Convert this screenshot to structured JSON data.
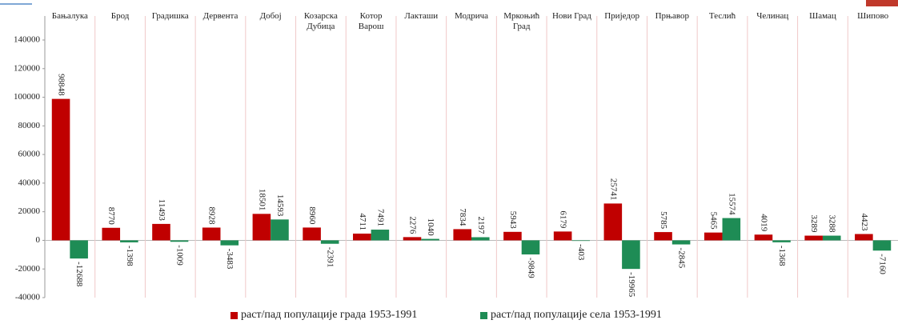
{
  "chart_data": {
    "type": "bar",
    "categories": [
      "Бањалука",
      "Брод",
      "Градишка",
      "Дервента",
      "Добој",
      "Козарска\nДубица",
      "Котор\nВарош",
      "Лакташи",
      "Модрича",
      "Мркоњић\nГрад",
      "Нови Град",
      "Приједор",
      "Прњавор",
      "Теслић",
      "Челинац",
      "Шамац",
      "Шипово"
    ],
    "series": [
      {
        "name": "раст/пад популације града 1953-1991",
        "color": "#c00000",
        "values": [
          98848,
          8770,
          11493,
          8928,
          18501,
          8960,
          4711,
          2276,
          7834,
          5943,
          6179,
          25741,
          5785,
          5465,
          4019,
          3289,
          4423
        ]
      },
      {
        "name": "раст/пад популације села 1953-1991",
        "color": "#1e8c55",
        "values": [
          -12688,
          -1398,
          -1009,
          -3483,
          14593,
          -2391,
          7491,
          1040,
          2197,
          -9849,
          -403,
          -19965,
          -2845,
          15574,
          -1368,
          3288,
          -7160
        ]
      }
    ],
    "ylim": [
      -40000,
      140000
    ],
    "yticks": [
      -40000,
      -20000,
      0,
      20000,
      40000,
      60000,
      80000,
      100000,
      120000,
      140000
    ],
    "grid": true,
    "legend": "bottom"
  }
}
